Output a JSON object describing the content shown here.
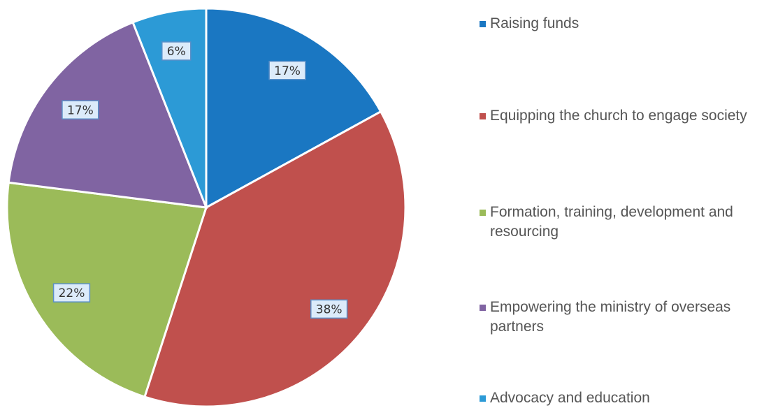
{
  "chart_data": {
    "type": "pie",
    "categories": [
      "Raising funds",
      "Equipping the church to engage society",
      "Formation, training, development and resourcing",
      "Empowering the ministry of overseas partners",
      "Advocacy and education"
    ],
    "values": [
      17,
      38,
      22,
      17,
      6
    ],
    "value_labels": [
      "17%",
      "38%",
      "22%",
      "17%",
      "6%"
    ],
    "colors": [
      "#1a77c2",
      "#c0504d",
      "#9bbb59",
      "#8064a2",
      "#2c9ad6"
    ],
    "legend": "right"
  }
}
